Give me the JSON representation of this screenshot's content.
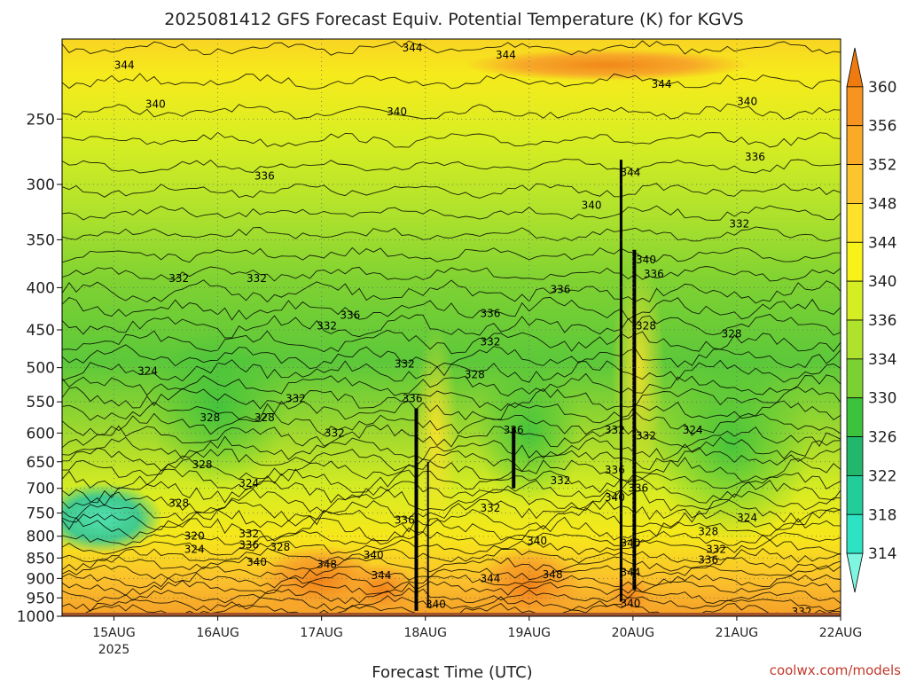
{
  "chart_data": {
    "type": "heatmap",
    "subtype": "time-height contour cross-section",
    "title": "2025081412 GFS Forecast Equiv. Potential Temperature (K) for KGVS",
    "xlabel": "Forecast Time (UTC)",
    "ylabel": "",
    "credit": "coolwx.com/models",
    "x_ticks": [
      {
        "label": "15AUG",
        "sub": "2025"
      },
      {
        "label": "16AUG",
        "sub": ""
      },
      {
        "label": "17AUG",
        "sub": ""
      },
      {
        "label": "18AUG",
        "sub": ""
      },
      {
        "label": "19AUG",
        "sub": ""
      },
      {
        "label": "20AUG",
        "sub": ""
      },
      {
        "label": "21AUG",
        "sub": ""
      },
      {
        "label": "22AUG",
        "sub": ""
      }
    ],
    "y_ticks": [
      "250",
      "300",
      "350",
      "400",
      "450",
      "500",
      "550",
      "600",
      "650",
      "700",
      "750",
      "800",
      "850",
      "900",
      "950",
      "1000"
    ],
    "y_scale": "log",
    "y_inverted": true,
    "y_range_hPa": [
      200,
      1000
    ],
    "grid": "dotted",
    "colorbar": {
      "placement": "right",
      "ticks": [
        "360",
        "356",
        "352",
        "348",
        "344",
        "340",
        "336",
        "334",
        "330",
        "326",
        "322",
        "318",
        "314"
      ],
      "colors": [
        "#ef7b10",
        "#f79320",
        "#f9ab28",
        "#fcc52e",
        "#fde12a",
        "#f6f21a",
        "#d5ed23",
        "#afe22c",
        "#7cd132",
        "#3cc23c",
        "#22b86c",
        "#22cd9a",
        "#2ee3c4",
        "#7ef6e0"
      ]
    },
    "ground_color": "#a0522d",
    "contour_labels": [
      {
        "t": 0.08,
        "p": 215,
        "v": "344"
      },
      {
        "t": 0.12,
        "p": 240,
        "v": "340"
      },
      {
        "t": 0.26,
        "p": 293,
        "v": "336"
      },
      {
        "t": 0.45,
        "p": 205,
        "v": "344"
      },
      {
        "t": 0.43,
        "p": 245,
        "v": "340"
      },
      {
        "t": 0.57,
        "p": 209,
        "v": "344"
      },
      {
        "t": 0.77,
        "p": 227,
        "v": "344"
      },
      {
        "t": 0.88,
        "p": 238,
        "v": "340"
      },
      {
        "t": 0.89,
        "p": 278,
        "v": "336"
      },
      {
        "t": 0.87,
        "p": 335,
        "v": "332"
      },
      {
        "t": 0.68,
        "p": 318,
        "v": "340"
      },
      {
        "t": 0.73,
        "p": 290,
        "v": "344"
      },
      {
        "t": 0.75,
        "p": 370,
        "v": "340"
      },
      {
        "t": 0.76,
        "p": 385,
        "v": "336"
      },
      {
        "t": 0.75,
        "p": 445,
        "v": "328"
      },
      {
        "t": 0.86,
        "p": 455,
        "v": "328"
      },
      {
        "t": 0.15,
        "p": 390,
        "v": "332"
      },
      {
        "t": 0.25,
        "p": 390,
        "v": "332"
      },
      {
        "t": 0.37,
        "p": 432,
        "v": "336"
      },
      {
        "t": 0.34,
        "p": 445,
        "v": "332"
      },
      {
        "t": 0.64,
        "p": 402,
        "v": "336"
      },
      {
        "t": 0.55,
        "p": 430,
        "v": "336"
      },
      {
        "t": 0.55,
        "p": 465,
        "v": "332"
      },
      {
        "t": 0.53,
        "p": 510,
        "v": "328"
      },
      {
        "t": 0.44,
        "p": 495,
        "v": "332"
      },
      {
        "t": 0.45,
        "p": 545,
        "v": "336"
      },
      {
        "t": 0.11,
        "p": 505,
        "v": "324"
      },
      {
        "t": 0.19,
        "p": 575,
        "v": "328"
      },
      {
        "t": 0.26,
        "p": 575,
        "v": "328"
      },
      {
        "t": 0.3,
        "p": 545,
        "v": "332"
      },
      {
        "t": 0.35,
        "p": 600,
        "v": "332"
      },
      {
        "t": 0.58,
        "p": 595,
        "v": "336"
      },
      {
        "t": 0.71,
        "p": 595,
        "v": "332"
      },
      {
        "t": 0.75,
        "p": 605,
        "v": "332"
      },
      {
        "t": 0.81,
        "p": 595,
        "v": "324"
      },
      {
        "t": 0.18,
        "p": 655,
        "v": "328"
      },
      {
        "t": 0.24,
        "p": 690,
        "v": "324"
      },
      {
        "t": 0.64,
        "p": 685,
        "v": "332"
      },
      {
        "t": 0.71,
        "p": 665,
        "v": "336"
      },
      {
        "t": 0.74,
        "p": 700,
        "v": "336"
      },
      {
        "t": 0.71,
        "p": 718,
        "v": "340"
      },
      {
        "t": 0.15,
        "p": 730,
        "v": "328"
      },
      {
        "t": 0.55,
        "p": 740,
        "v": "332"
      },
      {
        "t": 0.44,
        "p": 765,
        "v": "336"
      },
      {
        "t": 0.17,
        "p": 800,
        "v": "320"
      },
      {
        "t": 0.17,
        "p": 830,
        "v": "324"
      },
      {
        "t": 0.24,
        "p": 795,
        "v": "332"
      },
      {
        "t": 0.24,
        "p": 820,
        "v": "336"
      },
      {
        "t": 0.28,
        "p": 825,
        "v": "328"
      },
      {
        "t": 0.25,
        "p": 860,
        "v": "340"
      },
      {
        "t": 0.34,
        "p": 865,
        "v": "348"
      },
      {
        "t": 0.4,
        "p": 843,
        "v": "340"
      },
      {
        "t": 0.41,
        "p": 893,
        "v": "344"
      },
      {
        "t": 0.61,
        "p": 810,
        "v": "340"
      },
      {
        "t": 0.63,
        "p": 890,
        "v": "348"
      },
      {
        "t": 0.55,
        "p": 900,
        "v": "344"
      },
      {
        "t": 0.73,
        "p": 885,
        "v": "344"
      },
      {
        "t": 0.73,
        "p": 815,
        "v": "340"
      },
      {
        "t": 0.83,
        "p": 790,
        "v": "328"
      },
      {
        "t": 0.84,
        "p": 830,
        "v": "332"
      },
      {
        "t": 0.83,
        "p": 855,
        "v": "336"
      },
      {
        "t": 0.88,
        "p": 760,
        "v": "324"
      },
      {
        "t": 0.48,
        "p": 967,
        "v": "340"
      },
      {
        "t": 0.73,
        "p": 965,
        "v": "340"
      },
      {
        "t": 0.95,
        "p": 988,
        "v": "332"
      }
    ]
  }
}
